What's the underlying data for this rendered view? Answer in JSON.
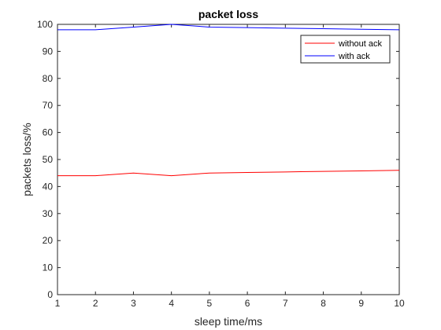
{
  "chart_data": {
    "type": "line",
    "title": "packet loss",
    "xlabel": "sleep time/ms",
    "ylabel": "packets loss/%",
    "x": [
      1,
      2,
      3,
      4,
      5,
      6,
      7,
      8,
      9,
      10
    ],
    "xlim": [
      1,
      10
    ],
    "ylim": [
      0,
      100
    ],
    "xticks": [
      "1",
      "2",
      "3",
      "4",
      "5",
      "6",
      "7",
      "8",
      "9",
      "10"
    ],
    "yticks": [
      "0",
      "10",
      "20",
      "30",
      "40",
      "50",
      "60",
      "70",
      "80",
      "90",
      "100"
    ],
    "grid": false,
    "legend_position": "top-right",
    "series": [
      {
        "name": "without ack",
        "color": "#ff0000",
        "values": [
          44,
          44,
          45,
          44,
          45,
          45.2,
          45.4,
          45.6,
          45.8,
          46
        ]
      },
      {
        "name": "with ack",
        "color": "#0000ff",
        "values": [
          98,
          98,
          99,
          100,
          99,
          98.8,
          98.6,
          98.4,
          98.2,
          98
        ]
      }
    ]
  }
}
